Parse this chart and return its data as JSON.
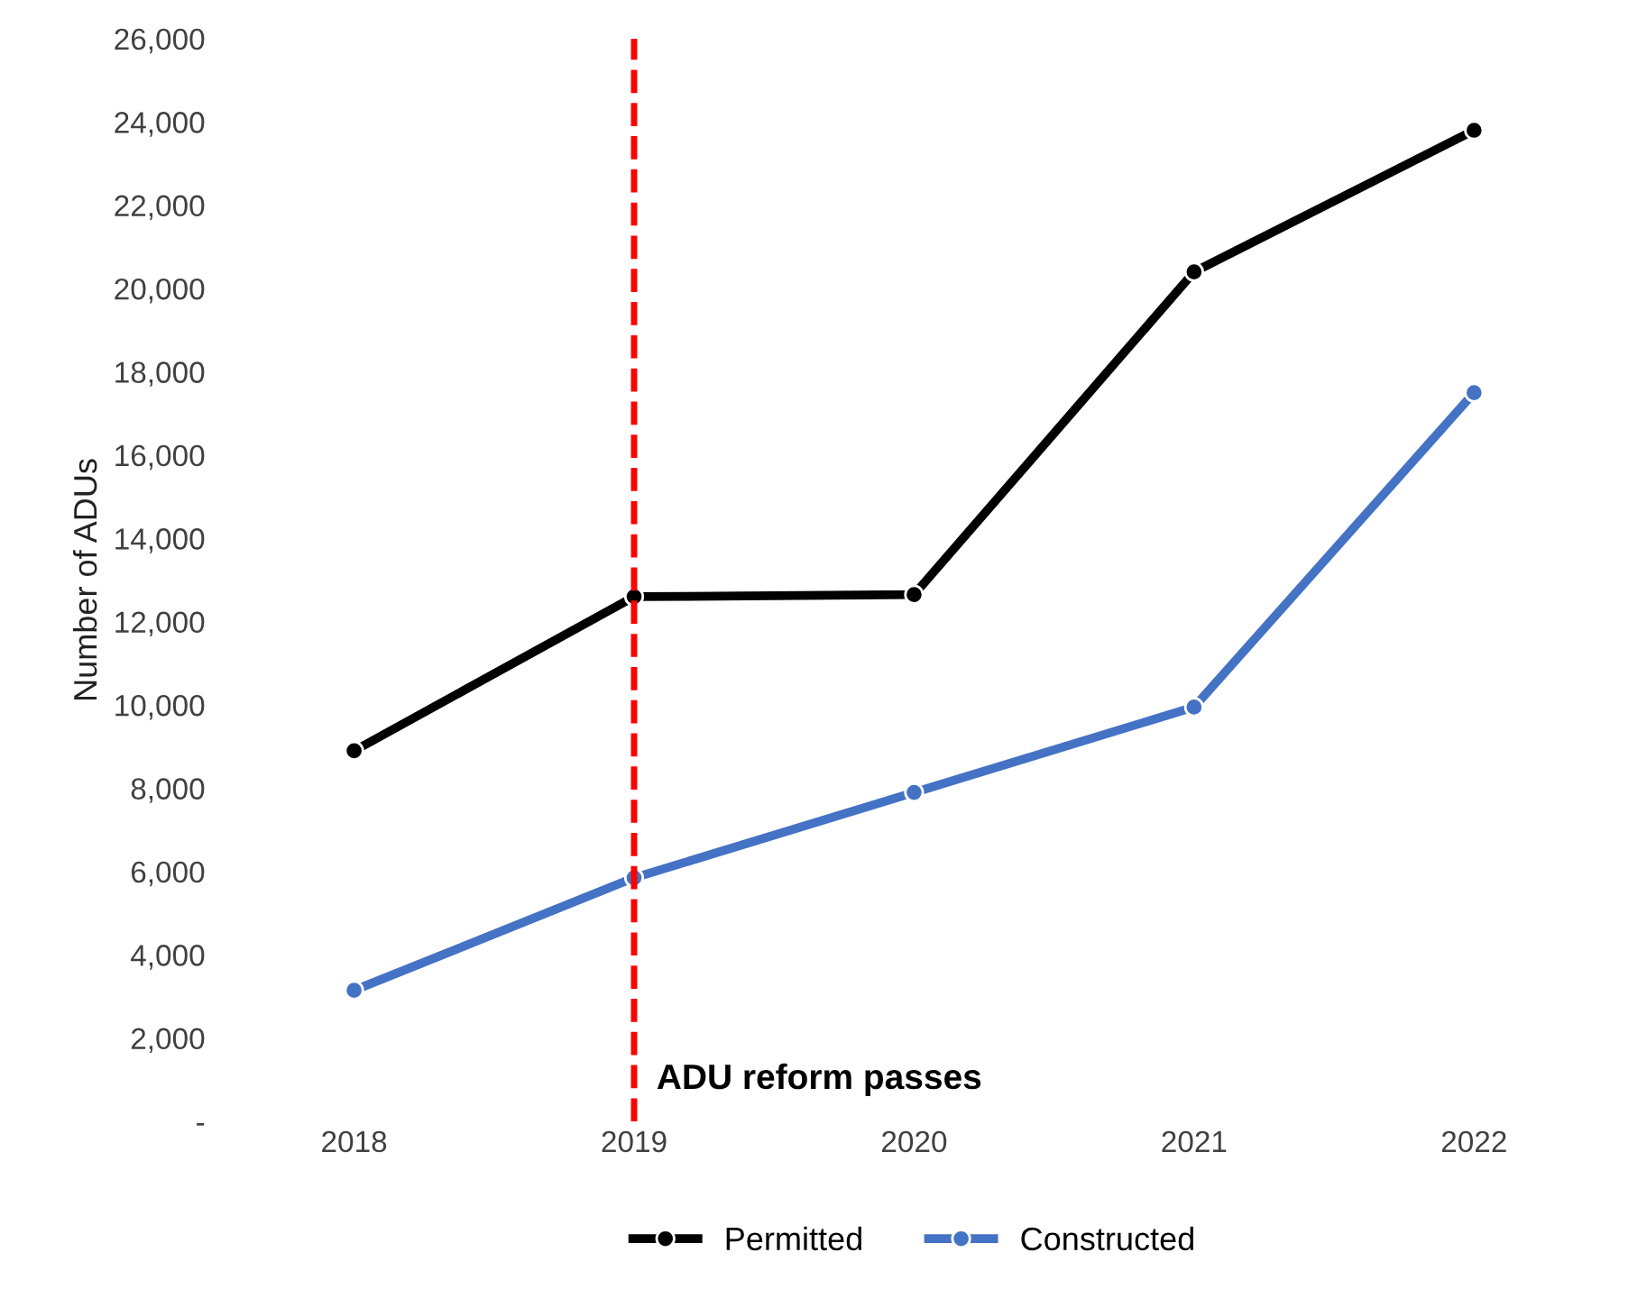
{
  "chart_data": {
    "type": "line",
    "ylabel": "Number of ADUs",
    "categories": [
      "2018",
      "2019",
      "2020",
      "2021",
      "2022"
    ],
    "series": [
      {
        "name": "Permitted",
        "color": "#000000",
        "values": [
          8900,
          12600,
          12650,
          20400,
          23800
        ]
      },
      {
        "name": "Constructed",
        "color": "#4472c4",
        "values": [
          3150,
          5850,
          7900,
          9950,
          17500
        ]
      }
    ],
    "ylim": [
      0,
      26000
    ],
    "yticks": [
      {
        "value": 0,
        "label": "-"
      },
      {
        "value": 2000,
        "label": "2,000"
      },
      {
        "value": 4000,
        "label": "4,000"
      },
      {
        "value": 6000,
        "label": "6,000"
      },
      {
        "value": 8000,
        "label": "8,000"
      },
      {
        "value": 10000,
        "label": "10,000"
      },
      {
        "value": 12000,
        "label": "12,000"
      },
      {
        "value": 14000,
        "label": "14,000"
      },
      {
        "value": 16000,
        "label": "16,000"
      },
      {
        "value": 18000,
        "label": "18,000"
      },
      {
        "value": 20000,
        "label": "20,000"
      },
      {
        "value": 22000,
        "label": "22,000"
      },
      {
        "value": 24000,
        "label": "24,000"
      },
      {
        "value": 26000,
        "label": "26,000"
      }
    ],
    "ref_lines": [
      {
        "axis": "x",
        "value": "2019",
        "label": "ADU reform passes",
        "color": "#ff0000",
        "line_style": "dashed"
      }
    ],
    "legend": "bottom",
    "marker": "circle",
    "line_style": "solid",
    "grid": false
  }
}
